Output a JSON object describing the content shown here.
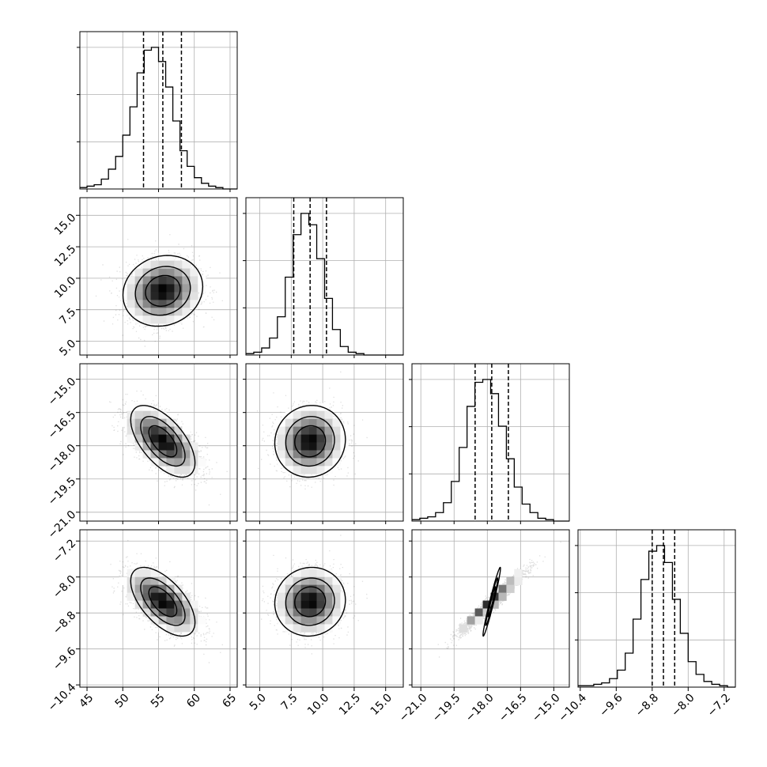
{
  "chart_data": {
    "type": "corner",
    "grid": true,
    "parameters": [
      {
        "range": [
          44,
          66
        ],
        "ticks": [
          "45",
          "50",
          "55",
          "60",
          "65"
        ],
        "tick_values": [
          45,
          50,
          55,
          60,
          65
        ],
        "quantiles": [
          52.9,
          55.6,
          58.2
        ]
      },
      {
        "range": [
          3.9,
          16.4
        ],
        "ticks": [
          "5.0",
          "7.5",
          "10.0",
          "12.5",
          "15.0"
        ],
        "tick_values": [
          5.0,
          7.5,
          10.0,
          12.5,
          15.0
        ],
        "quantiles": [
          7.7,
          9.0,
          10.3
        ]
      },
      {
        "range": [
          -21.4,
          -14.3
        ],
        "ticks": [
          "−21.0",
          "−19.5",
          "−18.0",
          "−16.5",
          "−15.0"
        ],
        "tick_values": [
          -21.0,
          -19.5,
          -18.0,
          -16.5,
          -15.0
        ],
        "quantiles": [
          -18.55,
          -17.8,
          -17.05
        ]
      },
      {
        "range": [
          -10.45,
          -6.95
        ],
        "ticks": [
          "−10.4",
          "−9.6",
          "−8.8",
          "−8.0",
          "−7.2"
        ],
        "tick_values": [
          -10.4,
          -9.6,
          -8.8,
          -8.0,
          -7.2
        ],
        "quantiles": [
          -8.8,
          -8.55,
          -8.3
        ]
      }
    ],
    "histograms": [
      {
        "bin_start": 44,
        "bin_width": 1,
        "counts": [
          1,
          2,
          3,
          7,
          14,
          23,
          38,
          58,
          82,
          98,
          100,
          90,
          72,
          48,
          27,
          16,
          8,
          4,
          2,
          1,
          0,
          0
        ]
      },
      {
        "bin_start": 3.9,
        "bin_width": 0.625,
        "counts": [
          1,
          2,
          5,
          12,
          27,
          55,
          85,
          100,
          92,
          68,
          40,
          18,
          6,
          2,
          1,
          0,
          0,
          0,
          0,
          0
        ]
      },
      {
        "bin_start": -21.4,
        "bin_width": 0.355,
        "counts": [
          1,
          2,
          3,
          6,
          13,
          28,
          52,
          81,
          98,
          100,
          90,
          67,
          44,
          24,
          12,
          6,
          2,
          1,
          0,
          0
        ]
      },
      {
        "bin_start": -10.45,
        "bin_width": 0.175,
        "counts": [
          1,
          1,
          2,
          3,
          6,
          12,
          24,
          48,
          76,
          96,
          100,
          88,
          62,
          38,
          18,
          9,
          4,
          2,
          1,
          0
        ]
      }
    ],
    "joint": [
      {
        "col": 0,
        "row": 1,
        "mean": [
          55.6,
          9.0
        ],
        "sd": [
          2.5,
          1.25
        ],
        "corr": 0.12
      },
      {
        "col": 0,
        "row": 2,
        "mean": [
          55.6,
          -17.8
        ],
        "sd": [
          2.5,
          0.72
        ],
        "corr": -0.6
      },
      {
        "col": 1,
        "row": 2,
        "mean": [
          9.0,
          -17.8
        ],
        "sd": [
          1.25,
          0.72
        ],
        "corr": 0.05
      },
      {
        "col": 0,
        "row": 3,
        "mean": [
          55.6,
          -8.55
        ],
        "sd": [
          2.5,
          0.34
        ],
        "corr": -0.6
      },
      {
        "col": 1,
        "row": 3,
        "mean": [
          9.0,
          -8.55
        ],
        "sd": [
          1.25,
          0.34
        ],
        "corr": 0.05
      },
      {
        "col": 2,
        "row": 3,
        "mean": [
          -17.8,
          -8.55
        ],
        "sd": [
          0.72,
          0.34
        ],
        "corr": 0.97
      }
    ]
  }
}
